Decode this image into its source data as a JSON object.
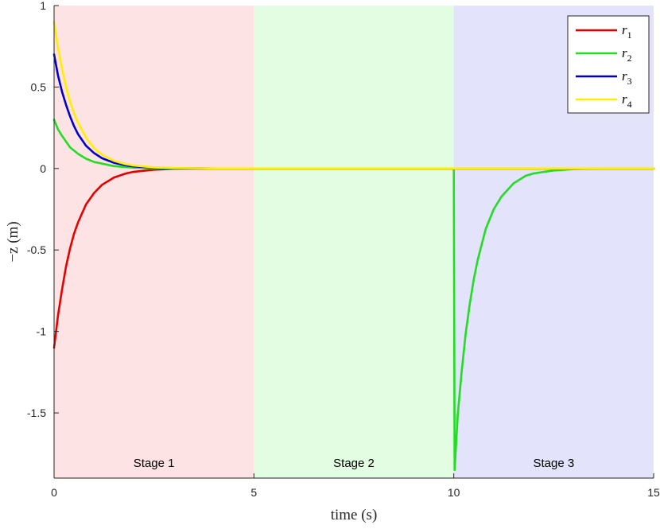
{
  "chart_data": {
    "type": "line",
    "title": "",
    "xlabel": "time (s)",
    "ylabel": "−z (m)",
    "xlim": [
      0,
      15
    ],
    "ylim": [
      -1.9,
      1
    ],
    "x_ticks": [
      0,
      5,
      10,
      15
    ],
    "y_ticks": [
      -1.5,
      -1,
      -0.5,
      0,
      0.5,
      1
    ],
    "x_tick_labels": [
      "0",
      "5",
      "10",
      "15"
    ],
    "y_tick_labels": [
      "-1.5",
      "-1",
      "-0.5",
      "0",
      "0.5",
      "1"
    ],
    "grid": false,
    "legend": {
      "placement": "top-right"
    },
    "stages": [
      {
        "label": "Stage 1",
        "x_start": 0,
        "x_end": 5,
        "color": "#fde3e3"
      },
      {
        "label": "Stage 2",
        "x_start": 5,
        "x_end": 10,
        "color": "#e3fde3"
      },
      {
        "label": "Stage 3",
        "x_start": 10,
        "x_end": 15,
        "color": "#e3e3fc"
      }
    ],
    "series": [
      {
        "name": "r1",
        "name_base": "r",
        "name_sub": "1",
        "color": "#e60000",
        "x": [
          0,
          0.1,
          0.2,
          0.3,
          0.4,
          0.5,
          0.6,
          0.8,
          1.0,
          1.2,
          1.5,
          1.8,
          2.0,
          2.5,
          3.0,
          3.5,
          4.0,
          5,
          10,
          15
        ],
        "y": [
          -1.1,
          -0.9,
          -0.74,
          -0.6,
          -0.49,
          -0.4,
          -0.33,
          -0.22,
          -0.15,
          -0.1,
          -0.055,
          -0.03,
          -0.02,
          -0.007,
          -0.002,
          -0.001,
          0,
          0,
          0,
          0
        ]
      },
      {
        "name": "r2",
        "name_base": "r",
        "name_sub": "2",
        "color": "#22dd22",
        "x": [
          0,
          0.1,
          0.2,
          0.4,
          0.6,
          0.8,
          1.0,
          1.5,
          2.0,
          2.5,
          3.0,
          5,
          10,
          10.02,
          10.1,
          10.2,
          10.3,
          10.4,
          10.5,
          10.6,
          10.8,
          11.0,
          11.2,
          11.5,
          11.8,
          12.0,
          12.5,
          13.0,
          13.5,
          14.0,
          15
        ],
        "y": [
          0.3,
          0.24,
          0.2,
          0.13,
          0.09,
          0.06,
          0.04,
          0.015,
          0.005,
          0.002,
          0.0,
          0,
          0,
          -1.85,
          -1.51,
          -1.24,
          -1.01,
          -0.83,
          -0.68,
          -0.56,
          -0.37,
          -0.25,
          -0.17,
          -0.09,
          -0.045,
          -0.03,
          -0.012,
          -0.004,
          -0.001,
          0,
          0
        ]
      },
      {
        "name": "r3",
        "name_base": "r",
        "name_sub": "3",
        "color": "#0000cc",
        "x": [
          0,
          0.1,
          0.2,
          0.3,
          0.4,
          0.5,
          0.6,
          0.8,
          1.0,
          1.2,
          1.5,
          1.8,
          2.0,
          2.5,
          3.0,
          4.0,
          5,
          10,
          15
        ],
        "y": [
          0.7,
          0.57,
          0.47,
          0.39,
          0.32,
          0.26,
          0.21,
          0.14,
          0.095,
          0.063,
          0.035,
          0.019,
          0.013,
          0.005,
          0.002,
          0,
          0,
          0,
          0
        ]
      },
      {
        "name": "r4",
        "name_base": "r",
        "name_sub": "4",
        "color": "#ffee00",
        "x": [
          0,
          0.1,
          0.2,
          0.3,
          0.4,
          0.5,
          0.6,
          0.8,
          1.0,
          1.2,
          1.5,
          1.8,
          2.0,
          2.5,
          3.0,
          4.0,
          5,
          10,
          15
        ],
        "y": [
          0.9,
          0.74,
          0.61,
          0.5,
          0.41,
          0.34,
          0.28,
          0.19,
          0.125,
          0.085,
          0.047,
          0.026,
          0.018,
          0.007,
          0.003,
          0,
          0,
          0,
          0
        ]
      }
    ]
  }
}
